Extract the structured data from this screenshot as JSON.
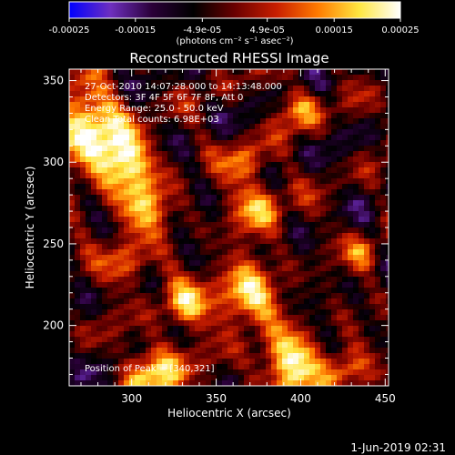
{
  "colorbar": {
    "min": -0.00025,
    "max": 0.00025,
    "tick_labels": [
      "-0.00025",
      "-0.00015",
      "-4.9e-05",
      "4.9e-05",
      "0.00015",
      "0.00025"
    ],
    "units_label": "(photons cm⁻² s⁻¹ asec⁻²)",
    "colormap": [
      "#0000ff",
      "#6e2fbf",
      "#2a0038",
      "#000000",
      "#6a0000",
      "#c81e00",
      "#ff7a00",
      "#ffe640",
      "#ffffff"
    ]
  },
  "chart_data": {
    "type": "heatmap",
    "title": "Reconstructed RHESSI Image",
    "xlabel": "Heliocentric X (arcsec)",
    "ylabel": "Heliocentric Y (arcsec)",
    "xlim": [
      263,
      452
    ],
    "ylim": [
      163,
      357
    ],
    "xticks": [
      300,
      350,
      400,
      450
    ],
    "yticks": [
      200,
      250,
      300,
      350
    ],
    "grid": false,
    "peak": [
      340,
      321
    ],
    "annotations": [
      "27-Oct-2010 14:07:28.000 to 14:13:48.000",
      "Detectors: 3F 4F 5F 6F 7F 8F, Att 0",
      "Energy Range: 25.0 - 50.0 keV",
      "Clean     Total counts: 6.98E+03",
      "Position of Peak = [340,321]"
    ]
  },
  "footer": {
    "timestamp": "1-Jun-2019 02:31"
  }
}
